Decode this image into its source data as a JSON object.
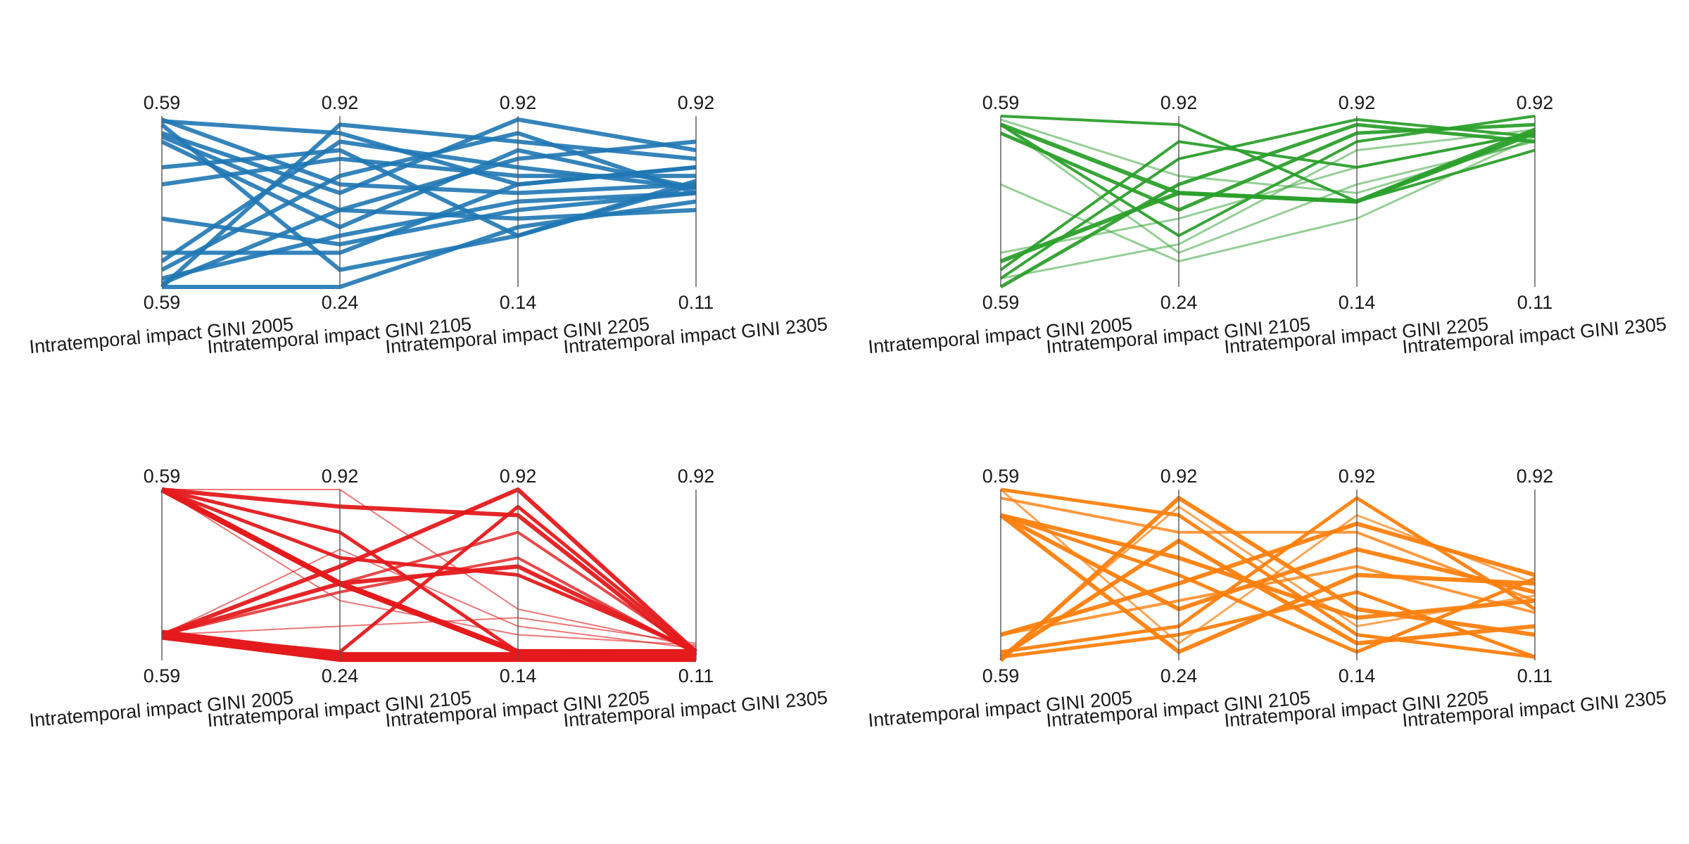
{
  "figure": {
    "background": "#ffffff"
  },
  "chart_data": [
    {
      "type": "parallel_coordinates",
      "color": "#1f77b4",
      "axes": [
        {
          "label": "Intratemporal impact GINI 2005",
          "min": "0.59",
          "max": "0.59"
        },
        {
          "label": "Intratemporal impact GINI 2105",
          "min": "0.24",
          "max": "0.92"
        },
        {
          "label": "Intratemporal impact GINI 2205",
          "min": "0.14",
          "max": "0.92"
        },
        {
          "label": "Intratemporal impact GINI 2305",
          "min": "0.11",
          "max": "0.92"
        }
      ],
      "lines": [
        {
          "w": 6,
          "o": 0.9,
          "v": [
            0.98,
            0.6,
            0.55,
            0.6
          ]
        },
        {
          "w": 6,
          "o": 0.9,
          "v": [
            0.88,
            0.45,
            0.4,
            0.45
          ]
        },
        {
          "w": 6,
          "o": 0.9,
          "v": [
            0.6,
            0.75,
            0.65,
            0.65
          ]
        },
        {
          "w": 6,
          "o": 0.9,
          "v": [
            0.15,
            0.85,
            0.7,
            0.58
          ]
        },
        {
          "w": 6,
          "o": 0.9,
          "v": [
            0.05,
            0.3,
            0.5,
            0.55
          ]
        },
        {
          "w": 6,
          "o": 0.9,
          "v": [
            0.0,
            0.95,
            0.85,
            0.75
          ]
        },
        {
          "w": 6,
          "o": 0.9,
          "v": [
            0.0,
            0.0,
            0.35,
            0.5
          ]
        },
        {
          "w": 6,
          "o": 0.9,
          "v": [
            0.95,
            0.1,
            0.3,
            0.62
          ]
        },
        {
          "w": 6,
          "o": 0.9,
          "v": [
            0.9,
            0.55,
            0.98,
            0.8
          ]
        },
        {
          "w": 6,
          "o": 0.9,
          "v": [
            0.1,
            0.65,
            0.9,
            0.55
          ]
        },
        {
          "w": 6,
          "o": 0.9,
          "v": [
            0.97,
            0.9,
            0.6,
            0.7
          ]
        },
        {
          "w": 6,
          "o": 0.9,
          "v": [
            0.02,
            0.45,
            0.75,
            0.85
          ]
        },
        {
          "w": 6,
          "o": 0.9,
          "v": [
            0.4,
            0.25,
            0.45,
            0.55
          ]
        },
        {
          "w": 6,
          "o": 0.9,
          "v": [
            0.7,
            0.8,
            0.3,
            0.6
          ]
        },
        {
          "w": 6,
          "o": 0.9,
          "v": [
            0.2,
            0.2,
            0.6,
            0.7
          ]
        },
        {
          "w": 6,
          "o": 0.9,
          "v": [
            0.85,
            0.35,
            0.8,
            0.58
          ]
        }
      ]
    },
    {
      "type": "parallel_coordinates",
      "color": "#2ca02c",
      "axes": [
        {
          "label": "Intratemporal impact GINI 2005",
          "min": "0.59",
          "max": "0.59"
        },
        {
          "label": "Intratemporal impact GINI 2105",
          "min": "0.24",
          "max": "0.92"
        },
        {
          "label": "Intratemporal impact GINI 2205",
          "min": "0.14",
          "max": "0.92"
        },
        {
          "label": "Intratemporal impact GINI 2305",
          "min": "0.11",
          "max": "0.92"
        }
      ],
      "lines": [
        {
          "w": 6,
          "o": 0.95,
          "v": [
            0.95,
            0.55,
            0.5,
            0.9
          ]
        },
        {
          "w": 6,
          "o": 0.95,
          "v": [
            0.15,
            0.55,
            0.5,
            0.92
          ]
        },
        {
          "w": 5,
          "o": 0.95,
          "v": [
            0.0,
            0.6,
            0.95,
            0.85
          ]
        },
        {
          "w": 5,
          "o": 0.95,
          "v": [
            0.9,
            0.45,
            0.9,
            0.95
          ]
        },
        {
          "w": 4,
          "o": 0.95,
          "v": [
            1.0,
            0.95,
            0.5,
            0.8
          ]
        },
        {
          "w": 4,
          "o": 0.95,
          "v": [
            0.1,
            0.85,
            0.7,
            0.9
          ]
        },
        {
          "w": 4,
          "o": 0.95,
          "v": [
            0.95,
            0.3,
            0.85,
            1.0
          ]
        },
        {
          "w": 4,
          "o": 0.95,
          "v": [
            0.05,
            0.75,
            0.98,
            0.88
          ]
        },
        {
          "w": 3,
          "o": 0.5,
          "v": [
            0.95,
            0.2,
            0.6,
            0.85
          ]
        },
        {
          "w": 3,
          "o": 0.5,
          "v": [
            0.2,
            0.4,
            0.7,
            0.9
          ]
        },
        {
          "w": 3,
          "o": 0.5,
          "v": [
            0.6,
            0.15,
            0.4,
            0.88
          ]
        },
        {
          "w": 3,
          "o": 0.5,
          "v": [
            0.98,
            0.65,
            0.55,
            0.86
          ]
        },
        {
          "w": 3,
          "o": 0.5,
          "v": [
            0.05,
            0.25,
            0.8,
            0.92
          ]
        }
      ]
    },
    {
      "type": "parallel_coordinates",
      "color": "#e41a1c",
      "axes": [
        {
          "label": "Intratemporal impact GINI 2005",
          "min": "0.59",
          "max": "0.59"
        },
        {
          "label": "Intratemporal impact GINI 2105",
          "min": "0.24",
          "max": "0.92"
        },
        {
          "label": "Intratemporal impact GINI 2205",
          "min": "0.14",
          "max": "0.92"
        },
        {
          "label": "Intratemporal impact GINI 2305",
          "min": "0.11",
          "max": "0.92"
        }
      ],
      "lines": [
        {
          "w": 14,
          "o": 1.0,
          "v": [
            0.15,
            0.02,
            0.02,
            0.02
          ]
        },
        {
          "w": 8,
          "o": 1.0,
          "v": [
            1.0,
            0.45,
            0.05,
            0.05
          ]
        },
        {
          "w": 6,
          "o": 0.95,
          "v": [
            0.15,
            0.45,
            0.55,
            0.05
          ]
        },
        {
          "w": 6,
          "o": 0.95,
          "v": [
            1.0,
            0.9,
            0.85,
            0.03
          ]
        },
        {
          "w": 6,
          "o": 0.95,
          "v": [
            0.15,
            0.55,
            1.0,
            0.05
          ]
        },
        {
          "w": 5,
          "o": 0.95,
          "v": [
            1.0,
            0.75,
            0.05,
            0.04
          ]
        },
        {
          "w": 5,
          "o": 0.95,
          "v": [
            0.15,
            0.05,
            0.9,
            0.05
          ]
        },
        {
          "w": 5,
          "o": 0.95,
          "v": [
            1.0,
            0.6,
            0.5,
            0.06
          ]
        },
        {
          "w": 4,
          "o": 0.8,
          "v": [
            1.0,
            0.45,
            0.75,
            0.05
          ]
        },
        {
          "w": 4,
          "o": 0.8,
          "v": [
            0.15,
            0.4,
            0.6,
            0.04
          ]
        },
        {
          "w": 2,
          "o": 0.6,
          "v": [
            1.0,
            1.0,
            0.3,
            0.08
          ]
        },
        {
          "w": 2,
          "o": 0.6,
          "v": [
            0.15,
            0.2,
            0.25,
            0.1
          ]
        },
        {
          "w": 2,
          "o": 0.6,
          "v": [
            0.15,
            0.65,
            0.2,
            0.07
          ]
        },
        {
          "w": 2,
          "o": 0.6,
          "v": [
            1.0,
            0.35,
            0.15,
            0.09
          ]
        }
      ]
    },
    {
      "type": "parallel_coordinates",
      "color": "#ff7f0e",
      "axes": [
        {
          "label": "Intratemporal impact GINI 2005",
          "min": "0.59",
          "max": "0.59"
        },
        {
          "label": "Intratemporal impact GINI 2105",
          "min": "0.24",
          "max": "0.92"
        },
        {
          "label": "Intratemporal impact GINI 2205",
          "min": "0.14",
          "max": "0.92"
        },
        {
          "label": "Intratemporal impact GINI 2305",
          "min": "0.11",
          "max": "0.92"
        }
      ],
      "lines": [
        {
          "w": 6,
          "o": 0.95,
          "v": [
            0.85,
            0.6,
            0.25,
            0.35
          ]
        },
        {
          "w": 6,
          "o": 0.95,
          "v": [
            0.02,
            0.7,
            0.1,
            0.2
          ]
        },
        {
          "w": 6,
          "o": 0.95,
          "v": [
            0.85,
            0.05,
            0.5,
            0.45
          ]
        },
        {
          "w": 6,
          "o": 0.95,
          "v": [
            0.15,
            0.45,
            0.8,
            0.5
          ]
        },
        {
          "w": 6,
          "o": 0.95,
          "v": [
            0.0,
            0.95,
            0.3,
            0.15
          ]
        },
        {
          "w": 6,
          "o": 0.95,
          "v": [
            0.85,
            0.3,
            0.65,
            0.4
          ]
        },
        {
          "w": 5,
          "o": 0.95,
          "v": [
            1.0,
            0.85,
            0.15,
            0.02
          ]
        },
        {
          "w": 5,
          "o": 0.95,
          "v": [
            0.05,
            0.2,
            0.95,
            0.3
          ]
        },
        {
          "w": 5,
          "o": 0.95,
          "v": [
            0.85,
            0.5,
            0.05,
            0.48
          ]
        },
        {
          "w": 5,
          "o": 0.95,
          "v": [
            0.02,
            0.15,
            0.4,
            0.02
          ]
        },
        {
          "w": 4,
          "o": 0.8,
          "v": [
            0.95,
            0.75,
            0.75,
            0.35
          ]
        },
        {
          "w": 4,
          "o": 0.8,
          "v": [
            0.15,
            0.35,
            0.55,
            0.28
          ]
        },
        {
          "w": 3,
          "o": 0.7,
          "v": [
            1.0,
            0.1,
            0.85,
            0.45
          ]
        },
        {
          "w": 3,
          "o": 0.7,
          "v": [
            0.02,
            0.9,
            0.2,
            0.38
          ]
        }
      ]
    }
  ]
}
